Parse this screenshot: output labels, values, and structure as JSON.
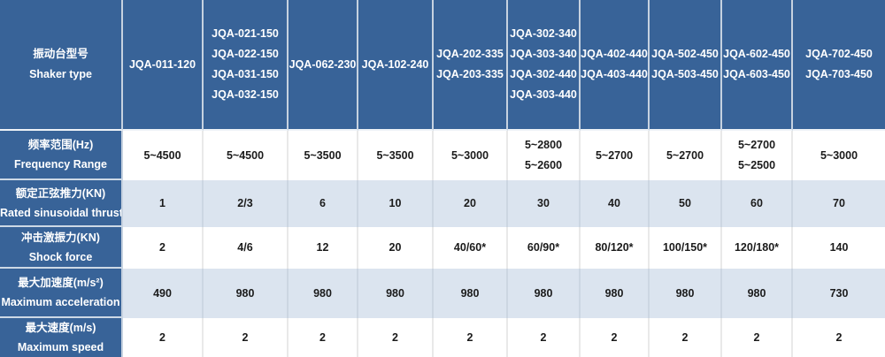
{
  "colors": {
    "header_blue": "#386398",
    "row_tint_blue": "#dbe4ef",
    "data_text": "#1b1b1b"
  },
  "table": {
    "header": {
      "label_zh": "振动台型号",
      "label_en": "Shaker type",
      "columns": [
        [
          "JQA-011-120"
        ],
        [
          "JQA-021-150",
          "JQA-022-150",
          "JQA-031-150",
          "JQA-032-150"
        ],
        [
          "JQA-062-230"
        ],
        [
          "JQA-102-240"
        ],
        [
          "JQA-202-335",
          "JQA-203-335"
        ],
        [
          "JQA-302-340",
          "JQA-303-340",
          "JQA-302-440",
          "JQA-303-440"
        ],
        [
          "JQA-402-440",
          "JQA-403-440"
        ],
        [
          "JQA-502-450",
          "JQA-503-450"
        ],
        [
          "JQA-602-450",
          "JQA-603-450"
        ],
        [
          "JQA-702-450",
          "JQA-703-450"
        ]
      ]
    },
    "rows": [
      {
        "label_zh": "频率范围(Hz)",
        "label_en": "Frequency Range",
        "shade": "white",
        "values": [
          [
            "5~4500"
          ],
          [
            "5~4500"
          ],
          [
            "5~3500"
          ],
          [
            "5~3500"
          ],
          [
            "5~3000"
          ],
          [
            "5~2800",
            "5~2600"
          ],
          [
            "5~2700"
          ],
          [
            "5~2700"
          ],
          [
            "5~2700",
            "5~2500"
          ],
          [
            "5~3000"
          ]
        ]
      },
      {
        "label_zh": "额定正弦推力(KN)",
        "label_en": "Rated sinusoidal thrust",
        "shade": "tint",
        "values": [
          [
            "1"
          ],
          [
            "2/3"
          ],
          [
            "6"
          ],
          [
            "10"
          ],
          [
            "20"
          ],
          [
            "30"
          ],
          [
            "40"
          ],
          [
            "50"
          ],
          [
            "60"
          ],
          [
            "70"
          ]
        ]
      },
      {
        "label_zh": "冲击激振力(KN)",
        "label_en": "Shock force",
        "shade": "white",
        "values": [
          [
            "2"
          ],
          [
            "4/6"
          ],
          [
            "12"
          ],
          [
            "20"
          ],
          [
            "40/60*"
          ],
          [
            "60/90*"
          ],
          [
            "80/120*"
          ],
          [
            "100/150*"
          ],
          [
            "120/180*"
          ],
          [
            "140"
          ]
        ]
      },
      {
        "label_zh": "最大加速度(m/s²)",
        "label_en": "Maximum acceleration",
        "shade": "tint",
        "values": [
          [
            "490"
          ],
          [
            "980"
          ],
          [
            "980"
          ],
          [
            "980"
          ],
          [
            "980"
          ],
          [
            "980"
          ],
          [
            "980"
          ],
          [
            "980"
          ],
          [
            "980"
          ],
          [
            "730"
          ]
        ]
      },
      {
        "label_zh": "最大速度(m/s)",
        "label_en": "Maximum speed",
        "shade": "white",
        "values": [
          [
            "2"
          ],
          [
            "2"
          ],
          [
            "2"
          ],
          [
            "2"
          ],
          [
            "2"
          ],
          [
            "2"
          ],
          [
            "2"
          ],
          [
            "2"
          ],
          [
            "2"
          ],
          [
            "2"
          ]
        ]
      }
    ],
    "partial_bottom_row_visible": true
  }
}
